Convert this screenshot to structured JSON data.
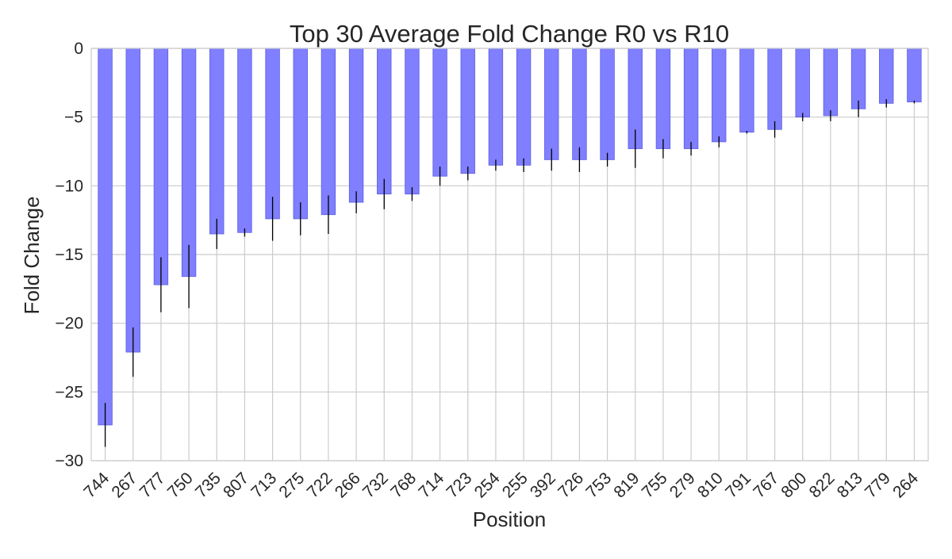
{
  "chart_data": {
    "type": "bar",
    "title": "Top 30 Average Fold Change R0 vs R10",
    "xlabel": "Position",
    "ylabel": "Fold Change",
    "ylim": [
      -30,
      0
    ],
    "yticks": [
      0,
      -5,
      -10,
      -15,
      -20,
      -25,
      -30
    ],
    "ytick_labels": [
      "0",
      "−5",
      "−10",
      "−15",
      "−20",
      "−25",
      "−30"
    ],
    "grid": true,
    "categories": [
      "744",
      "267",
      "777",
      "750",
      "735",
      "807",
      "713",
      "275",
      "722",
      "266",
      "732",
      "768",
      "714",
      "723",
      "254",
      "255",
      "392",
      "726",
      "753",
      "819",
      "755",
      "279",
      "810",
      "791",
      "767",
      "800",
      "822",
      "813",
      "779",
      "264"
    ],
    "values": [
      -27.4,
      -22.1,
      -17.2,
      -16.6,
      -13.5,
      -13.4,
      -12.4,
      -12.4,
      -12.1,
      -11.2,
      -10.6,
      -10.6,
      -9.3,
      -9.1,
      -8.5,
      -8.5,
      -8.1,
      -8.1,
      -8.1,
      -7.3,
      -7.3,
      -7.3,
      -6.8,
      -6.1,
      -5.9,
      -5.0,
      -4.9,
      -4.4,
      -4.0,
      -3.9
    ],
    "errors": [
      1.6,
      1.8,
      2.0,
      2.3,
      1.1,
      0.3,
      1.6,
      1.2,
      1.4,
      0.8,
      1.1,
      0.5,
      0.7,
      0.5,
      0.4,
      0.5,
      0.8,
      0.9,
      0.5,
      1.4,
      0.7,
      0.5,
      0.4,
      0.1,
      0.6,
      0.3,
      0.4,
      0.6,
      0.3,
      0.1
    ],
    "colors": {
      "bar": "#7f7fff",
      "bar_edge": "#5e5ee0",
      "error": "#000000",
      "grid": "#cbcbcb",
      "frame": "#cbcbcb"
    }
  }
}
